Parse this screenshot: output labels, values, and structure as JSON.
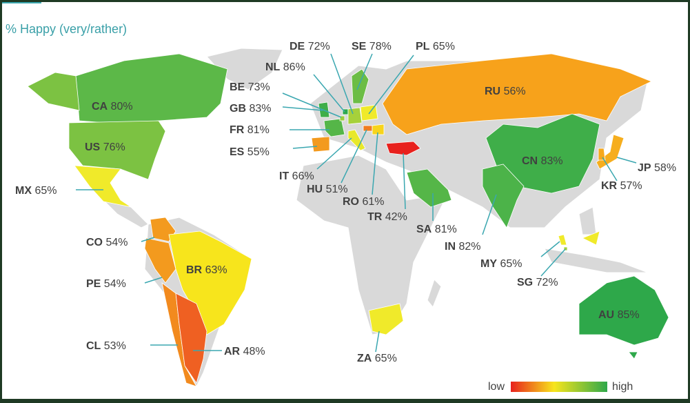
{
  "title": "% Happy (very/rather)",
  "countries": [
    {
      "code": "CA",
      "value": 80,
      "value_label": "80%",
      "color": "#5cb848"
    },
    {
      "code": "US",
      "value": 76,
      "value_label": "76%",
      "color": "#7cc242"
    },
    {
      "code": "MX",
      "value": 65,
      "value_label": "65%",
      "color": "#f0ea2a"
    },
    {
      "code": "CO",
      "value": 54,
      "value_label": "54%",
      "color": "#f39a1e"
    },
    {
      "code": "PE",
      "value": 54,
      "value_label": "54%",
      "color": "#f39a1e"
    },
    {
      "code": "BR",
      "value": 63,
      "value_label": "63%",
      "color": "#f7e51c"
    },
    {
      "code": "CL",
      "value": 53,
      "value_label": "53%",
      "color": "#f28a1e"
    },
    {
      "code": "AR",
      "value": 48,
      "value_label": "48%",
      "color": "#ef6022"
    },
    {
      "code": "RU",
      "value": 56,
      "value_label": "56%",
      "color": "#f7a21b"
    },
    {
      "code": "CN",
      "value": 83,
      "value_label": "83%",
      "color": "#3fae49"
    },
    {
      "code": "IN",
      "value": 82,
      "value_label": "82%",
      "color": "#4cb349"
    },
    {
      "code": "JP",
      "value": 58,
      "value_label": "58%",
      "color": "#f6ae1e"
    },
    {
      "code": "KR",
      "value": 57,
      "value_label": "57%",
      "color": "#f6a81d"
    },
    {
      "code": "AU",
      "value": 85,
      "value_label": "85%",
      "color": "#2ea84a"
    },
    {
      "code": "SA",
      "value": 81,
      "value_label": "81%",
      "color": "#55b648"
    },
    {
      "code": "TR",
      "value": 42,
      "value_label": "42%",
      "color": "#e8211d"
    },
    {
      "code": "ZA",
      "value": 65,
      "value_label": "65%",
      "color": "#f0ea2a"
    },
    {
      "code": "MY",
      "value": 65,
      "value_label": "65%",
      "color": "#f0ea2a"
    },
    {
      "code": "SG",
      "value": 72,
      "value_label": "72%",
      "color": "#a6d13b"
    },
    {
      "code": "ES",
      "value": 55,
      "value_label": "55%",
      "color": "#f39a1e"
    },
    {
      "code": "FR",
      "value": 81,
      "value_label": "81%",
      "color": "#55b648"
    },
    {
      "code": "GB",
      "value": 83,
      "value_label": "83%",
      "color": "#3fae49"
    },
    {
      "code": "BE",
      "value": 73,
      "value_label": "73%",
      "color": "#9ccd3d"
    },
    {
      "code": "NL",
      "value": 86,
      "value_label": "86%",
      "color": "#2ea84a"
    },
    {
      "code": "DE",
      "value": 72,
      "value_label": "72%",
      "color": "#a6d13b"
    },
    {
      "code": "IT",
      "value": 66,
      "value_label": "66%",
      "color": "#e8e82a"
    },
    {
      "code": "HU",
      "value": 51,
      "value_label": "51%",
      "color": "#f17c20"
    },
    {
      "code": "RO",
      "value": 61,
      "value_label": "61%",
      "color": "#f7d41c"
    },
    {
      "code": "PL",
      "value": 65,
      "value_label": "65%",
      "color": "#f0ea2a"
    },
    {
      "code": "SE",
      "value": 78,
      "value_label": "78%",
      "color": "#6cbd45"
    }
  ],
  "legend": {
    "low": "low",
    "high": "high"
  }
}
